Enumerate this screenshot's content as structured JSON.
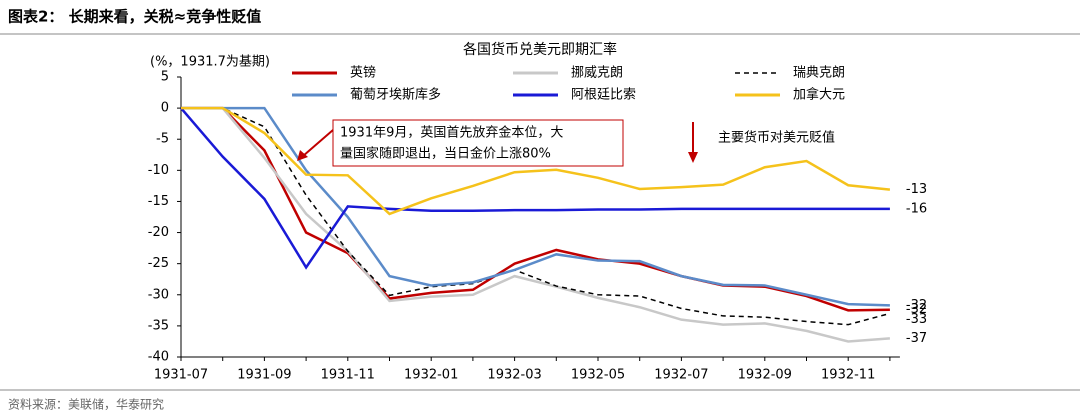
{
  "header": {
    "title": "图表2：  长期来看，关税≈竞争性贬值"
  },
  "footer": {
    "source": "资料来源：美联储，华泰研究"
  },
  "chart_data": {
    "type": "line",
    "title": "各国货币兑美元即期汇率",
    "y_label": "(%，1931.7为基期)",
    "categories": [
      "1931-07",
      null,
      "1931-09",
      null,
      "1931-11",
      null,
      "1932-01",
      null,
      "1932-03",
      null,
      "1932-05",
      null,
      "1932-07",
      null,
      "1932-09",
      null,
      "1932-11",
      null
    ],
    "ylim": [
      -40,
      5
    ],
    "yticks": [
      5,
      0,
      -5,
      -10,
      -15,
      -20,
      -25,
      -30,
      -35,
      -40
    ],
    "series": [
      {
        "name": "英镑",
        "color": "#c00000",
        "values": [
          0,
          0,
          -6.8,
          -20,
          -23.3,
          -30.6,
          -29.7,
          -29.2,
          -25,
          -22.8,
          -24.3,
          -25,
          -27,
          -28.5,
          -28.7,
          -30.2,
          -32.5,
          -32.4
        ],
        "value_labels": [
          null,
          null,
          null,
          null,
          null,
          null,
          null,
          null,
          null,
          null,
          null,
          null,
          null,
          null,
          null,
          null,
          null,
          "-32"
        ]
      },
      {
        "name": "挪威克朗",
        "color": "#c8c8c8",
        "values": [
          0,
          0,
          -8,
          -17,
          -23,
          -31,
          -30.3,
          -30,
          -27,
          -28.7,
          -30.5,
          -32,
          -34,
          -34.8,
          -34.6,
          -35.8,
          -37.5,
          -37
        ],
        "value_labels": [
          null,
          null,
          null,
          null,
          null,
          null,
          null,
          null,
          null,
          null,
          null,
          null,
          null,
          null,
          null,
          null,
          null,
          "-37"
        ]
      },
      {
        "name": "瑞典克朗",
        "color": "#000000",
        "dash": true,
        "values": [
          0,
          0,
          -3,
          -14,
          -23,
          -30.1,
          -28.7,
          -28.2,
          -26,
          -28.6,
          -30,
          -30.2,
          -32.2,
          -33.4,
          -33.6,
          -34.3,
          -34.8,
          -33
        ],
        "value_labels": [
          null,
          null,
          null,
          null,
          null,
          null,
          null,
          null,
          null,
          null,
          null,
          null,
          null,
          null,
          null,
          null,
          null,
          "-33"
        ]
      },
      {
        "name": "葡萄牙埃斯库多",
        "color": "#5b8bc9",
        "values": [
          0,
          0,
          0,
          -10,
          -17.5,
          -27,
          -28.5,
          -28,
          -26,
          -23.5,
          -24.5,
          -24.6,
          -27,
          -28.4,
          -28.5,
          -30,
          -31.5,
          -31.7
        ],
        "value_labels": [
          null,
          null,
          null,
          null,
          null,
          null,
          null,
          null,
          null,
          null,
          null,
          null,
          null,
          null,
          null,
          null,
          null,
          "-32"
        ]
      },
      {
        "name": "阿根廷比索",
        "color": "#1a1ad6",
        "values": [
          0,
          -7.8,
          -14.6,
          -25.6,
          -15.8,
          -16.2,
          -16.5,
          -16.5,
          -16.4,
          -16.4,
          -16.3,
          -16.3,
          -16.2,
          -16.2,
          -16.2,
          -16.2,
          -16.2,
          -16.2
        ],
        "value_labels": [
          null,
          null,
          null,
          null,
          null,
          null,
          null,
          null,
          null,
          null,
          null,
          null,
          null,
          null,
          null,
          null,
          null,
          "-16"
        ]
      },
      {
        "name": "加拿大元",
        "color": "#f5c21b",
        "values": [
          0,
          0,
          -4,
          -10.7,
          -10.8,
          -17,
          -14.5,
          -12.5,
          -10.3,
          -9.9,
          -11.2,
          -13,
          -12.7,
          -12.3,
          -9.5,
          -8.5,
          -12.4,
          -13.1
        ],
        "value_labels": [
          null,
          null,
          null,
          null,
          null,
          null,
          null,
          null,
          null,
          null,
          null,
          null,
          null,
          null,
          null,
          null,
          null,
          "-13"
        ]
      }
    ],
    "annotations": [
      {
        "lines": [
          "1931年9月，英国首先放弃金本位，大",
          "量国家随即退出，当日金价上涨80%"
        ],
        "color": "#c00000"
      },
      {
        "lines": [
          "主要货币对美元贬值"
        ],
        "color": "#c00000"
      }
    ]
  }
}
